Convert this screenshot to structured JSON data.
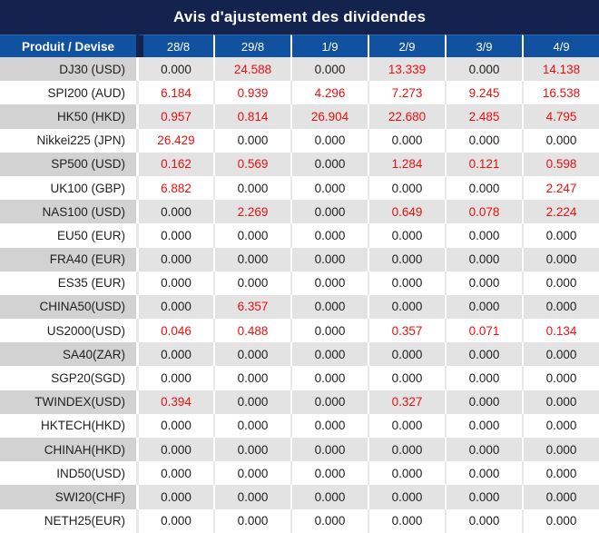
{
  "title": "Avis d'ajustement des dividendes",
  "colors": {
    "title_bg": "#13234e",
    "header_bg": "#10529f",
    "header_text": "#ffffff",
    "alt_row_product_bg": "#d2d2d2",
    "alt_row_value_bg": "#e3e3e3",
    "value_text": "#212121",
    "nonzero_value_text": "#ef0e0e"
  },
  "chart_data": {
    "type": "table",
    "title": "Avis d'ajustement des dividendes",
    "columns": [
      "Produit / Devise",
      "28/8",
      "29/8",
      "1/9",
      "2/9",
      "3/9",
      "4/9"
    ],
    "decimals": 3,
    "value_color_rule": "zero values black, non-zero values red",
    "row_stripe_rule": "odd rows gray, even rows white",
    "rows": [
      {
        "product": "DJ30 (USD)",
        "values": [
          0.0,
          24.588,
          0.0,
          13.339,
          0.0,
          14.138
        ]
      },
      {
        "product": "SPI200 (AUD)",
        "values": [
          6.184,
          0.939,
          4.296,
          7.273,
          9.245,
          16.538
        ]
      },
      {
        "product": "HK50 (HKD)",
        "values": [
          0.957,
          0.814,
          26.904,
          22.68,
          2.485,
          4.795
        ]
      },
      {
        "product": "Nikkei225 (JPN)",
        "values": [
          26.429,
          0.0,
          0.0,
          0.0,
          0.0,
          0.0
        ]
      },
      {
        "product": "SP500 (USD)",
        "values": [
          0.162,
          0.569,
          0.0,
          1.284,
          0.121,
          0.598
        ]
      },
      {
        "product": "UK100 (GBP)",
        "values": [
          6.882,
          0.0,
          0.0,
          0.0,
          0.0,
          2.247
        ]
      },
      {
        "product": "NAS100 (USD)",
        "values": [
          0.0,
          2.269,
          0.0,
          0.649,
          0.078,
          2.224
        ]
      },
      {
        "product": "EU50 (EUR)",
        "values": [
          0.0,
          0.0,
          0.0,
          0.0,
          0.0,
          0.0
        ]
      },
      {
        "product": "FRA40 (EUR)",
        "values": [
          0.0,
          0.0,
          0.0,
          0.0,
          0.0,
          0.0
        ]
      },
      {
        "product": "ES35 (EUR)",
        "values": [
          0.0,
          0.0,
          0.0,
          0.0,
          0.0,
          0.0
        ]
      },
      {
        "product": "CHINA50(USD)",
        "values": [
          0.0,
          6.357,
          0.0,
          0.0,
          0.0,
          0.0
        ]
      },
      {
        "product": "US2000(USD)",
        "values": [
          0.046,
          0.488,
          0.0,
          0.357,
          0.071,
          0.134
        ]
      },
      {
        "product": "SA40(ZAR)",
        "values": [
          0.0,
          0.0,
          0.0,
          0.0,
          0.0,
          0.0
        ]
      },
      {
        "product": "SGP20(SGD)",
        "values": [
          0.0,
          0.0,
          0.0,
          0.0,
          0.0,
          0.0
        ]
      },
      {
        "product": "TWINDEX(USD)",
        "values": [
          0.394,
          0.0,
          0.0,
          0.327,
          0.0,
          0.0
        ]
      },
      {
        "product": "HKTECH(HKD)",
        "values": [
          0.0,
          0.0,
          0.0,
          0.0,
          0.0,
          0.0
        ]
      },
      {
        "product": "CHINAH(HKD)",
        "values": [
          0.0,
          0.0,
          0.0,
          0.0,
          0.0,
          0.0
        ]
      },
      {
        "product": "IND50(USD)",
        "values": [
          0.0,
          0.0,
          0.0,
          0.0,
          0.0,
          0.0
        ]
      },
      {
        "product": "SWI20(CHF)",
        "values": [
          0.0,
          0.0,
          0.0,
          0.0,
          0.0,
          0.0
        ]
      },
      {
        "product": "NETH25(EUR)",
        "values": [
          0.0,
          0.0,
          0.0,
          0.0,
          0.0,
          0.0
        ]
      }
    ]
  }
}
